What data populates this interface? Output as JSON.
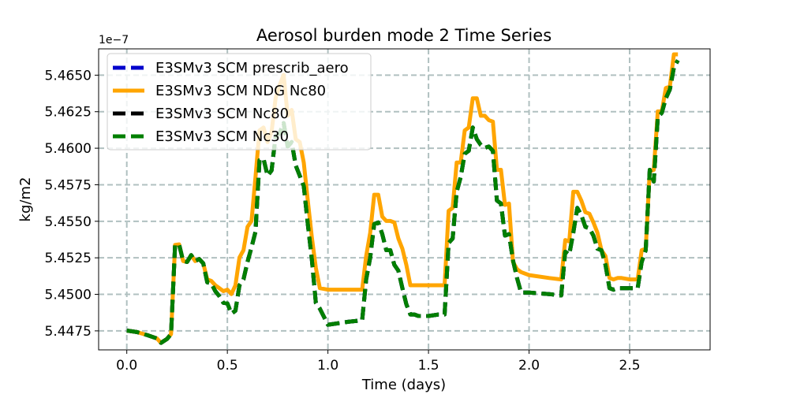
{
  "chart_data": {
    "type": "line",
    "title": "Aerosol burden mode 2 Time Series",
    "xlabel": "Time (days)",
    "ylabel": "kg/m2",
    "y_offset_label": "1e−7",
    "xlim": [
      -0.14,
      2.9
    ],
    "ylim": [
      5.4462,
      5.4668
    ],
    "xticks": [
      0.0,
      0.5,
      1.0,
      1.5,
      2.0,
      2.5
    ],
    "xtick_labels": [
      "0.0",
      "0.5",
      "1.0",
      "1.5",
      "2.0",
      "2.5"
    ],
    "yticks": [
      5.4475,
      5.45,
      5.4525,
      5.455,
      5.4575,
      5.46,
      5.4625,
      5.465
    ],
    "ytick_labels": [
      "5.4475",
      "5.4500",
      "5.4525",
      "5.4550",
      "5.4575",
      "5.4600",
      "5.4625",
      "5.4650"
    ],
    "grid": true,
    "legend_position": "top-left",
    "series": [
      {
        "name": "E3SMv3 SCM prescrib_aero",
        "color": "#0000cc",
        "style": "dashed",
        "x": [
          0.0,
          0.05,
          0.1,
          0.15,
          0.17,
          0.2,
          0.22,
          0.24,
          0.26,
          0.28,
          0.3,
          0.32,
          0.34,
          0.36,
          0.38,
          0.4,
          0.42,
          0.44,
          0.46,
          0.48,
          0.5,
          0.52,
          0.54,
          0.56,
          0.58,
          0.6,
          0.62,
          0.64,
          0.66,
          0.68,
          0.7,
          0.72,
          0.74,
          0.76,
          0.78,
          0.8,
          0.82,
          0.84,
          0.86,
          0.88,
          0.9,
          0.92,
          0.94,
          0.96,
          1.0,
          1.1,
          1.17,
          1.19,
          1.21,
          1.23,
          1.25,
          1.27,
          1.29,
          1.31,
          1.33,
          1.35,
          1.37,
          1.39,
          1.41,
          1.43,
          1.45,
          1.5,
          1.55,
          1.58,
          1.6,
          1.62,
          1.64,
          1.66,
          1.68,
          1.7,
          1.72,
          1.74,
          1.76,
          1.78,
          1.8,
          1.82,
          1.84,
          1.86,
          1.88,
          1.9,
          1.92,
          1.94,
          1.96,
          2.0,
          2.1,
          2.16,
          2.18,
          2.2,
          2.22,
          2.24,
          2.26,
          2.28,
          2.3,
          2.32,
          2.34,
          2.36,
          2.38,
          2.4,
          2.42,
          2.44,
          2.46,
          2.5,
          2.54,
          2.56,
          2.58,
          2.6,
          2.62,
          2.64,
          2.66,
          2.68,
          2.7,
          2.72,
          2.74
        ],
        "values": [
          5.44752,
          5.44742,
          5.44722,
          5.44698,
          5.44668,
          5.44695,
          5.44728,
          5.45338,
          5.45342,
          5.45228,
          5.45222,
          5.45268,
          5.45228,
          5.45242,
          5.45212,
          5.45082,
          5.45075,
          5.45022,
          5.44988,
          5.44942,
          5.44938,
          5.44868,
          5.44888,
          5.45062,
          5.45102,
          5.45222,
          5.45322,
          5.45428,
          5.45918,
          5.45928,
          5.45812,
          5.45848,
          5.46082,
          5.46102,
          5.46172,
          5.46012,
          5.46042,
          5.45882,
          5.45812,
          5.45742,
          5.45482,
          5.45242,
          5.44942,
          5.44902,
          5.44792,
          5.44812,
          5.44822,
          5.45102,
          5.45252,
          5.45482,
          5.45492,
          5.45412,
          5.45302,
          5.45302,
          5.45202,
          5.45162,
          5.45042,
          5.44932,
          5.44862,
          5.44862,
          5.44852,
          5.44852,
          5.44862,
          5.44862,
          5.45352,
          5.45382,
          5.45702,
          5.45802,
          5.45962,
          5.45982,
          5.46142,
          5.46062,
          5.46022,
          5.46002,
          5.46012,
          5.45982,
          5.45642,
          5.45622,
          5.45402,
          5.45412,
          5.45232,
          5.45112,
          5.45012,
          5.45012,
          5.45002,
          5.44992,
          5.45292,
          5.45272,
          5.45422,
          5.45592,
          5.45542,
          5.45462,
          5.45452,
          5.45402,
          5.45312,
          5.45302,
          5.45202,
          5.45042,
          5.45032,
          5.45042,
          5.45042,
          5.45042,
          5.45042,
          5.45222,
          5.45302,
          5.45852,
          5.45772,
          5.46212,
          5.46242,
          5.46342,
          5.46402,
          5.46552,
          5.46602
        ]
      },
      {
        "name": "E3SMv3 SCM NDG Nc80",
        "color": "#ffa500",
        "style": "solid",
        "x": [
          0.0,
          0.05,
          0.1,
          0.15,
          0.17,
          0.2,
          0.22,
          0.24,
          0.26,
          0.28,
          0.3,
          0.32,
          0.34,
          0.36,
          0.38,
          0.4,
          0.42,
          0.44,
          0.46,
          0.48,
          0.5,
          0.52,
          0.54,
          0.56,
          0.58,
          0.6,
          0.62,
          0.64,
          0.66,
          0.68,
          0.7,
          0.72,
          0.74,
          0.76,
          0.78,
          0.8,
          0.82,
          0.84,
          0.86,
          0.88,
          0.9,
          0.92,
          0.94,
          0.96,
          1.0,
          1.1,
          1.17,
          1.19,
          1.21,
          1.23,
          1.25,
          1.27,
          1.29,
          1.31,
          1.33,
          1.35,
          1.37,
          1.39,
          1.41,
          1.43,
          1.45,
          1.5,
          1.55,
          1.58,
          1.6,
          1.62,
          1.64,
          1.66,
          1.68,
          1.7,
          1.72,
          1.74,
          1.76,
          1.78,
          1.8,
          1.82,
          1.84,
          1.86,
          1.88,
          1.9,
          1.92,
          1.94,
          1.96,
          2.0,
          2.1,
          2.16,
          2.18,
          2.2,
          2.22,
          2.24,
          2.26,
          2.28,
          2.3,
          2.32,
          2.34,
          2.36,
          2.38,
          2.4,
          2.42,
          2.44,
          2.46,
          2.5,
          2.54,
          2.56,
          2.58,
          2.6,
          2.62,
          2.64,
          2.66,
          2.68,
          2.7,
          2.72,
          2.74
        ],
        "values": [
          5.44752,
          5.44742,
          5.44722,
          5.44698,
          5.44668,
          5.44695,
          5.44728,
          5.45338,
          5.45342,
          5.45228,
          5.45222,
          5.45268,
          5.45228,
          5.45242,
          5.45212,
          5.45102,
          5.45092,
          5.45062,
          5.45042,
          5.45022,
          5.45032,
          5.45002,
          5.45062,
          5.45252,
          5.45302,
          5.45462,
          5.45502,
          5.45802,
          5.46122,
          5.46142,
          5.46042,
          5.46112,
          5.46342,
          5.46432,
          5.46502,
          5.46222,
          5.46262,
          5.46062,
          5.46042,
          5.45902,
          5.45642,
          5.45392,
          5.45182,
          5.45042,
          5.45032,
          5.45032,
          5.45032,
          5.45262,
          5.45422,
          5.45682,
          5.45682,
          5.45532,
          5.45502,
          5.45502,
          5.45492,
          5.45382,
          5.45312,
          5.45202,
          5.45062,
          5.45062,
          5.45062,
          5.45062,
          5.45062,
          5.45062,
          5.45572,
          5.45592,
          5.45902,
          5.45902,
          5.46122,
          5.46142,
          5.46342,
          5.46342,
          5.46222,
          5.46222,
          5.46192,
          5.46182,
          5.45852,
          5.45852,
          5.45612,
          5.45622,
          5.45222,
          5.45172,
          5.45152,
          5.45132,
          5.45112,
          5.45102,
          5.45372,
          5.45362,
          5.45702,
          5.45702,
          5.45642,
          5.45562,
          5.45552,
          5.45492,
          5.45422,
          5.45302,
          5.45262,
          5.45112,
          5.45102,
          5.45112,
          5.45112,
          5.45102,
          5.45102,
          5.45302,
          5.45312,
          5.45842,
          5.45852,
          5.46252,
          5.46252,
          5.46412,
          5.46422,
          5.46642,
          5.46642
        ]
      },
      {
        "name": "E3SMv3 SCM Nc80",
        "color": "#000000",
        "style": "dashed",
        "x": [
          0.0,
          0.05,
          0.1,
          0.15,
          0.17,
          0.2,
          0.22,
          0.24,
          0.26,
          0.28,
          0.3,
          0.32,
          0.34,
          0.36,
          0.38,
          0.4,
          0.42,
          0.44,
          0.46,
          0.48,
          0.5,
          0.52,
          0.54,
          0.56,
          0.58,
          0.6,
          0.62,
          0.64,
          0.66,
          0.68,
          0.7,
          0.72,
          0.74,
          0.76,
          0.78,
          0.8,
          0.82,
          0.84,
          0.86,
          0.88,
          0.9,
          0.92,
          0.94,
          0.96,
          1.0,
          1.1,
          1.17,
          1.19,
          1.21,
          1.23,
          1.25,
          1.27,
          1.29,
          1.31,
          1.33,
          1.35,
          1.37,
          1.39,
          1.41,
          1.43,
          1.45,
          1.5,
          1.55,
          1.58,
          1.6,
          1.62,
          1.64,
          1.66,
          1.68,
          1.7,
          1.72,
          1.74,
          1.76,
          1.78,
          1.8,
          1.82,
          1.84,
          1.86,
          1.88,
          1.9,
          1.92,
          1.94,
          1.96,
          2.0,
          2.1,
          2.16,
          2.18,
          2.2,
          2.22,
          2.24,
          2.26,
          2.28,
          2.3,
          2.32,
          2.34,
          2.36,
          2.38,
          2.4,
          2.42,
          2.44,
          2.46,
          2.5,
          2.54,
          2.56,
          2.58,
          2.6,
          2.62,
          2.64,
          2.66,
          2.68,
          2.7,
          2.72,
          2.74
        ],
        "values": [
          5.44752,
          5.44742,
          5.44722,
          5.44698,
          5.44668,
          5.44695,
          5.44728,
          5.45338,
          5.45342,
          5.45228,
          5.45222,
          5.45268,
          5.45228,
          5.45242,
          5.45212,
          5.45082,
          5.45075,
          5.45022,
          5.44988,
          5.44942,
          5.44938,
          5.44868,
          5.44888,
          5.45062,
          5.45102,
          5.45222,
          5.45322,
          5.45428,
          5.45918,
          5.45928,
          5.45812,
          5.45848,
          5.46082,
          5.46102,
          5.46172,
          5.46012,
          5.46042,
          5.45882,
          5.45812,
          5.45742,
          5.45482,
          5.45242,
          5.44942,
          5.44902,
          5.44792,
          5.44812,
          5.44822,
          5.45102,
          5.45252,
          5.45482,
          5.45492,
          5.45412,
          5.45302,
          5.45302,
          5.45202,
          5.45162,
          5.45042,
          5.44932,
          5.44862,
          5.44862,
          5.44852,
          5.44852,
          5.44862,
          5.44862,
          5.45352,
          5.45382,
          5.45702,
          5.45802,
          5.45962,
          5.45982,
          5.46142,
          5.46062,
          5.46022,
          5.46002,
          5.46012,
          5.45982,
          5.45642,
          5.45622,
          5.45402,
          5.45412,
          5.45232,
          5.45112,
          5.45012,
          5.45012,
          5.45002,
          5.44992,
          5.45292,
          5.45272,
          5.45422,
          5.45592,
          5.45542,
          5.45462,
          5.45452,
          5.45402,
          5.45312,
          5.45302,
          5.45202,
          5.45042,
          5.45032,
          5.45042,
          5.45042,
          5.45042,
          5.45042,
          5.45222,
          5.45302,
          5.45852,
          5.45772,
          5.46212,
          5.46242,
          5.46342,
          5.46402,
          5.46552,
          5.46602
        ]
      },
      {
        "name": "E3SMv3 SCM Nc30",
        "color": "#007f00",
        "style": "dashed",
        "x": [
          0.0,
          0.05,
          0.1,
          0.15,
          0.17,
          0.2,
          0.22,
          0.24,
          0.26,
          0.28,
          0.3,
          0.32,
          0.34,
          0.36,
          0.38,
          0.4,
          0.42,
          0.44,
          0.46,
          0.48,
          0.5,
          0.52,
          0.54,
          0.56,
          0.58,
          0.6,
          0.62,
          0.64,
          0.66,
          0.68,
          0.7,
          0.72,
          0.74,
          0.76,
          0.78,
          0.8,
          0.82,
          0.84,
          0.86,
          0.88,
          0.9,
          0.92,
          0.94,
          0.96,
          1.0,
          1.1,
          1.17,
          1.19,
          1.21,
          1.23,
          1.25,
          1.27,
          1.29,
          1.31,
          1.33,
          1.35,
          1.37,
          1.39,
          1.41,
          1.43,
          1.45,
          1.5,
          1.55,
          1.58,
          1.6,
          1.62,
          1.64,
          1.66,
          1.68,
          1.7,
          1.72,
          1.74,
          1.76,
          1.78,
          1.8,
          1.82,
          1.84,
          1.86,
          1.88,
          1.9,
          1.92,
          1.94,
          1.96,
          2.0,
          2.1,
          2.16,
          2.18,
          2.2,
          2.22,
          2.24,
          2.26,
          2.28,
          2.3,
          2.32,
          2.34,
          2.36,
          2.38,
          2.4,
          2.42,
          2.44,
          2.46,
          2.5,
          2.54,
          2.56,
          2.58,
          2.6,
          2.62,
          2.64,
          2.66,
          2.68,
          2.7,
          2.72,
          2.74
        ],
        "values": [
          5.44752,
          5.44742,
          5.44722,
          5.44698,
          5.44668,
          5.44695,
          5.44728,
          5.45338,
          5.45342,
          5.45228,
          5.45222,
          5.45268,
          5.45228,
          5.45242,
          5.45212,
          5.45082,
          5.45075,
          5.45022,
          5.44988,
          5.44942,
          5.44938,
          5.44868,
          5.44888,
          5.45062,
          5.45102,
          5.45222,
          5.45322,
          5.45428,
          5.45918,
          5.45928,
          5.45812,
          5.45848,
          5.46082,
          5.46102,
          5.46172,
          5.46012,
          5.46042,
          5.45882,
          5.45812,
          5.45742,
          5.45482,
          5.45242,
          5.44942,
          5.44902,
          5.44792,
          5.44812,
          5.44822,
          5.45102,
          5.45252,
          5.45482,
          5.45492,
          5.45412,
          5.45302,
          5.45302,
          5.45202,
          5.45162,
          5.45042,
          5.44932,
          5.44862,
          5.44862,
          5.44852,
          5.44852,
          5.44862,
          5.44862,
          5.45352,
          5.45382,
          5.45702,
          5.45802,
          5.45962,
          5.45982,
          5.46142,
          5.46062,
          5.46022,
          5.46002,
          5.46012,
          5.45982,
          5.45642,
          5.45622,
          5.45402,
          5.45412,
          5.45232,
          5.45112,
          5.45012,
          5.45012,
          5.45002,
          5.44992,
          5.45292,
          5.45272,
          5.45422,
          5.45592,
          5.45542,
          5.45462,
          5.45452,
          5.45402,
          5.45312,
          5.45302,
          5.45202,
          5.45042,
          5.45032,
          5.45042,
          5.45042,
          5.45042,
          5.45042,
          5.45222,
          5.45302,
          5.45852,
          5.45772,
          5.46212,
          5.46242,
          5.46342,
          5.46402,
          5.46552,
          5.46602
        ]
      }
    ]
  }
}
